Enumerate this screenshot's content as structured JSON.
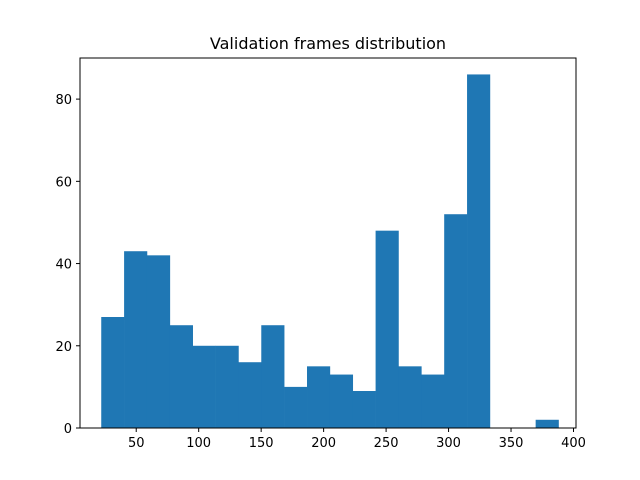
{
  "chart_data": {
    "type": "histogram",
    "title": "Validation frames distribution",
    "xlabel": "",
    "ylabel": "",
    "xlim": [
      5,
      402
    ],
    "ylim": [
      0,
      90
    ],
    "xticks": [
      50,
      100,
      150,
      200,
      250,
      300,
      350,
      400
    ],
    "yticks": [
      0,
      20,
      40,
      60,
      80
    ],
    "grid": false,
    "bar_color": "#1f77b4",
    "bins": [
      {
        "x0": 22.0,
        "x1": 40.3,
        "count": 27
      },
      {
        "x0": 40.3,
        "x1": 58.6,
        "count": 43
      },
      {
        "x0": 58.6,
        "x1": 76.9,
        "count": 42
      },
      {
        "x0": 76.9,
        "x1": 95.2,
        "count": 25
      },
      {
        "x0": 95.2,
        "x1": 113.5,
        "count": 20
      },
      {
        "x0": 113.5,
        "x1": 131.8,
        "count": 20
      },
      {
        "x0": 131.8,
        "x1": 150.1,
        "count": 16
      },
      {
        "x0": 150.1,
        "x1": 168.4,
        "count": 25
      },
      {
        "x0": 168.4,
        "x1": 186.7,
        "count": 10
      },
      {
        "x0": 186.7,
        "x1": 205.0,
        "count": 15
      },
      {
        "x0": 205.0,
        "x1": 223.3,
        "count": 13
      },
      {
        "x0": 223.3,
        "x1": 241.6,
        "count": 9
      },
      {
        "x0": 241.6,
        "x1": 259.9,
        "count": 48
      },
      {
        "x0": 259.9,
        "x1": 278.2,
        "count": 15
      },
      {
        "x0": 278.2,
        "x1": 296.5,
        "count": 13
      },
      {
        "x0": 296.5,
        "x1": 314.8,
        "count": 52
      },
      {
        "x0": 314.8,
        "x1": 333.1,
        "count": 86
      },
      {
        "x0": 333.1,
        "x1": 351.4,
        "count": 0
      },
      {
        "x0": 351.4,
        "x1": 369.7,
        "count": 0
      },
      {
        "x0": 369.7,
        "x1": 388.0,
        "count": 2
      }
    ]
  }
}
